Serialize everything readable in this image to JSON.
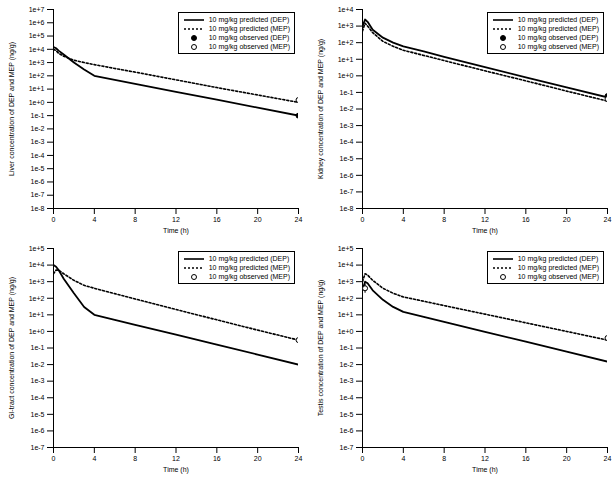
{
  "chart_data": [
    {
      "type": "line",
      "x_label": "Time (h)",
      "y_label": "Liver concentration of DEP and MEP (ng/g)",
      "log": "y",
      "legend": "top-right",
      "xlim": [
        0,
        24
      ],
      "xticks": [
        0,
        4,
        8,
        12,
        16,
        20,
        24
      ],
      "ylim": [
        1e-08,
        10000000.0
      ],
      "yticks": [
        {
          "value": 10000000.0,
          "label": "1e+7"
        },
        {
          "value": 1000000.0,
          "label": "1e+6"
        },
        {
          "value": 100000.0,
          "label": "1e+5"
        },
        {
          "value": 10000.0,
          "label": "1e+4"
        },
        {
          "value": 1000.0,
          "label": "1e+3"
        },
        {
          "value": 100.0,
          "label": "1e+2"
        },
        {
          "value": 10.0,
          "label": "1e+1"
        },
        {
          "value": 1,
          "label": "1e+0"
        },
        {
          "value": 0.1,
          "label": "1e-1"
        },
        {
          "value": 0.01,
          "label": "1e-2"
        },
        {
          "value": 0.001,
          "label": "1e-3"
        },
        {
          "value": 0.0001,
          "label": "1e-4"
        },
        {
          "value": 1e-05,
          "label": "1e-5"
        },
        {
          "value": 1e-06,
          "label": "1e-6"
        },
        {
          "value": 1e-07,
          "label": "1e-7"
        },
        {
          "value": 1e-08,
          "label": "1e-8"
        }
      ],
      "series": [
        {
          "name": "10 mg/kg predicted (DEP)",
          "type": "line",
          "color": "#000000",
          "line_style": "solid",
          "x": [
            0,
            0.25,
            0.5,
            1,
            2,
            3,
            4,
            6,
            8,
            12,
            16,
            20,
            24
          ],
          "values": [
            15000,
            12000,
            8000,
            4000,
            1000,
            300,
            100,
            50,
            25,
            6.3,
            1.6,
            0.4,
            0.1
          ]
        },
        {
          "name": "10 mg/kg predicted (MEP)",
          "type": "line",
          "color": "#000000",
          "line_style": "dotted",
          "x": [
            0,
            0.25,
            0.5,
            1,
            2,
            3,
            4,
            6,
            8,
            12,
            16,
            20,
            24
          ],
          "values": [
            10000,
            8000,
            5000,
            3000,
            1500,
            1000,
            700,
            360,
            190,
            50,
            13,
            3.6,
            1
          ]
        },
        {
          "name": "10 mg/kg observed (DEP)",
          "type": "scatter",
          "color": "#000000",
          "marker": "circle",
          "x": [
            24
          ],
          "values": [
            0.1
          ],
          "error_low": [
            0.07
          ],
          "error_high": [
            0.14
          ]
        },
        {
          "name": "10 mg/kg observed (MEP)",
          "type": "scatter",
          "color": "#000000",
          "marker": "open_circle",
          "x": [
            24
          ],
          "values": [
            1.5
          ],
          "error_low": [
            0.8
          ],
          "error_high": [
            2.5
          ]
        }
      ]
    },
    {
      "type": "line",
      "x_label": "Time (h)",
      "y_label": "Kidney concentration of DEP and MEP (ng/g)",
      "log": "y",
      "legend": "top-right",
      "xlim": [
        0,
        24
      ],
      "xticks": [
        0,
        4,
        8,
        12,
        16,
        20,
        24
      ],
      "ylim": [
        1e-08,
        10000.0
      ],
      "yticks": [
        {
          "value": 10000.0,
          "label": "1e+4"
        },
        {
          "value": 1000.0,
          "label": "1e+3"
        },
        {
          "value": 100.0,
          "label": "1e+2"
        },
        {
          "value": 10.0,
          "label": "1e+1"
        },
        {
          "value": 1,
          "label": "1e+0"
        },
        {
          "value": 0.1,
          "label": "1e-1"
        },
        {
          "value": 0.01,
          "label": "1e-2"
        },
        {
          "value": 0.001,
          "label": "1e-3"
        },
        {
          "value": 0.0001,
          "label": "1e-4"
        },
        {
          "value": 1e-05,
          "label": "1e-5"
        },
        {
          "value": 1e-06,
          "label": "1e-6"
        },
        {
          "value": 1e-07,
          "label": "1e-7"
        },
        {
          "value": 1e-08,
          "label": "1e-8"
        }
      ],
      "series": [
        {
          "name": "10 mg/kg predicted (DEP)",
          "type": "line",
          "color": "#000000",
          "line_style": "solid",
          "x": [
            0,
            0.25,
            0.5,
            1,
            2,
            3,
            4,
            6,
            8,
            12,
            16,
            20,
            24
          ],
          "values": [
            1000,
            2500,
            1800,
            600,
            200,
            100,
            60,
            30,
            14,
            3.4,
            0.8,
            0.2,
            0.05
          ]
        },
        {
          "name": "10 mg/kg predicted (MEP)",
          "type": "line",
          "color": "#000000",
          "line_style": "dotted",
          "x": [
            0,
            0.25,
            0.5,
            1,
            2,
            3,
            4,
            6,
            8,
            12,
            16,
            20,
            24
          ],
          "values": [
            500,
            1500,
            1000,
            400,
            120,
            60,
            35,
            17,
            8.3,
            2,
            0.5,
            0.12,
            0.03
          ]
        },
        {
          "name": "10 mg/kg observed (DEP)",
          "type": "scatter",
          "color": "#000000",
          "marker": "circle",
          "x": [
            24
          ],
          "values": [
            0.06
          ],
          "error_low": [
            0.04
          ],
          "error_high": [
            0.09
          ]
        },
        {
          "name": "10 mg/kg observed (MEP)",
          "type": "scatter",
          "color": "#000000",
          "marker": "open_circle",
          "x": [
            24
          ],
          "values": [
            0.04
          ],
          "error_low": [
            0.025
          ],
          "error_high": [
            0.06
          ]
        }
      ]
    },
    {
      "type": "line",
      "x_label": "Time (h)",
      "y_label": "GI-tract concentration of DEP and MEP (ng/g)",
      "log": "y",
      "legend": "top-right",
      "xlim": [
        0,
        24
      ],
      "xticks": [
        0,
        4,
        8,
        12,
        16,
        20,
        24
      ],
      "ylim": [
        1e-07,
        100000.0
      ],
      "yticks": [
        {
          "value": 100000.0,
          "label": "1e+5"
        },
        {
          "value": 10000.0,
          "label": "1e+4"
        },
        {
          "value": 1000.0,
          "label": "1e+3"
        },
        {
          "value": 100.0,
          "label": "1e+2"
        },
        {
          "value": 10.0,
          "label": "1e+1"
        },
        {
          "value": 1,
          "label": "1e+0"
        },
        {
          "value": 0.1,
          "label": "1e-1"
        },
        {
          "value": 0.01,
          "label": "1e-2"
        },
        {
          "value": 0.001,
          "label": "1e-3"
        },
        {
          "value": 0.0001,
          "label": "1e-4"
        },
        {
          "value": 1e-05,
          "label": "1e-5"
        },
        {
          "value": 1e-06,
          "label": "1e-6"
        },
        {
          "value": 1e-07,
          "label": "1e-7"
        }
      ],
      "series": [
        {
          "name": "10 mg/kg predicted (DEP)",
          "type": "line",
          "color": "#000000",
          "line_style": "solid",
          "x": [
            0,
            0.25,
            0.5,
            1,
            2,
            3,
            4,
            6,
            8,
            12,
            16,
            20,
            24
          ],
          "values": [
            10000,
            8000,
            5000,
            1500,
            200,
            30,
            10,
            5,
            2.5,
            0.63,
            0.16,
            0.04,
            0.01
          ]
        },
        {
          "name": "10 mg/kg predicted (MEP)",
          "type": "line",
          "color": "#000000",
          "line_style": "dotted",
          "x": [
            0,
            0.25,
            0.5,
            1,
            2,
            3,
            4,
            6,
            8,
            12,
            16,
            20,
            24
          ],
          "values": [
            3000,
            5000,
            5000,
            3000,
            1200,
            600,
            400,
            190,
            90,
            21,
            5,
            1.2,
            0.3
          ]
        },
        {
          "name": "10 mg/kg observed (MEP)",
          "type": "scatter",
          "color": "#000000",
          "marker": "open_circle",
          "x": [
            24
          ],
          "values": [
            0.3
          ],
          "error_low": [
            0.2
          ],
          "error_high": [
            0.45
          ]
        }
      ]
    },
    {
      "type": "line",
      "x_label": "Time (h)",
      "y_label": "Testis concentration of DEP and MEP (ng/g)",
      "log": "y",
      "legend": "top-right",
      "xlim": [
        0,
        24
      ],
      "xticks": [
        0,
        4,
        8,
        12,
        16,
        20,
        24
      ],
      "ylim": [
        1e-07,
        100000.0
      ],
      "yticks": [
        {
          "value": 100000.0,
          "label": "1e+5"
        },
        {
          "value": 10000.0,
          "label": "1e+4"
        },
        {
          "value": 1000.0,
          "label": "1e+3"
        },
        {
          "value": 100.0,
          "label": "1e+2"
        },
        {
          "value": 10.0,
          "label": "1e+1"
        },
        {
          "value": 1,
          "label": "1e+0"
        },
        {
          "value": 0.1,
          "label": "1e-1"
        },
        {
          "value": 0.01,
          "label": "1e-2"
        },
        {
          "value": 0.001,
          "label": "1e-3"
        },
        {
          "value": 0.0001,
          "label": "1e-4"
        },
        {
          "value": 1e-05,
          "label": "1e-5"
        },
        {
          "value": 1e-06,
          "label": "1e-6"
        },
        {
          "value": 1e-07,
          "label": "1e-7"
        }
      ],
      "series": [
        {
          "name": "10 mg/kg predicted (DEP)",
          "type": "line",
          "color": "#000000",
          "line_style": "solid",
          "x": [
            0,
            0.25,
            0.5,
            1,
            2,
            3,
            4,
            6,
            8,
            12,
            16,
            20,
            24
          ],
          "values": [
            300,
            1000,
            800,
            300,
            80,
            30,
            15,
            7.5,
            3.8,
            0.95,
            0.24,
            0.06,
            0.015
          ]
        },
        {
          "name": "10 mg/kg predicted (MEP)",
          "type": "line",
          "color": "#000000",
          "line_style": "dotted",
          "x": [
            0,
            0.25,
            0.5,
            1,
            2,
            3,
            4,
            6,
            8,
            12,
            16,
            20,
            24
          ],
          "values": [
            1000,
            3000,
            2500,
            1200,
            400,
            200,
            120,
            66,
            36,
            11,
            3.3,
            1,
            0.3
          ]
        },
        {
          "name": "10 mg/kg observed (MEP)",
          "type": "scatter",
          "color": "#000000",
          "marker": "open_circle",
          "x": [
            0.25,
            24
          ],
          "values": [
            400,
            0.4
          ],
          "error_low": [
            200,
            0.2
          ],
          "error_high": [
            700,
            0.7
          ]
        }
      ]
    }
  ]
}
